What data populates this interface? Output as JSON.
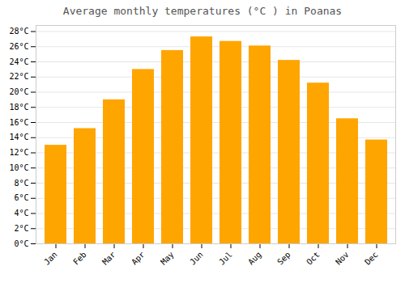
{
  "chart_data": {
    "type": "bar",
    "title": "Average monthly temperatures (°C ) in Poanas",
    "categories": [
      "Jan",
      "Feb",
      "Mar",
      "Apr",
      "May",
      "Jun",
      "Jul",
      "Aug",
      "Sep",
      "Oct",
      "Nov",
      "Dec"
    ],
    "values": [
      13.0,
      15.2,
      19.0,
      23.0,
      25.5,
      27.3,
      26.7,
      26.1,
      24.2,
      21.2,
      16.5,
      13.7
    ],
    "color": "#FFA500",
    "ylim": [
      0,
      28.8
    ],
    "yticks": [
      {
        "value": 0,
        "label": "0°C"
      },
      {
        "value": 2,
        "label": "2°C"
      },
      {
        "value": 4,
        "label": "4°C"
      },
      {
        "value": 6,
        "label": "6°C"
      },
      {
        "value": 8,
        "label": "8°C"
      },
      {
        "value": 10,
        "label": "10°C"
      },
      {
        "value": 12,
        "label": "12°C"
      },
      {
        "value": 14,
        "label": "14°C"
      },
      {
        "value": 16,
        "label": "16°C"
      },
      {
        "value": 18,
        "label": "18°C"
      },
      {
        "value": 20,
        "label": "20°C"
      },
      {
        "value": 22,
        "label": "22°C"
      },
      {
        "value": 24,
        "label": "24°C"
      },
      {
        "value": 26,
        "label": "26°C"
      },
      {
        "value": 28,
        "label": "28°C"
      }
    ],
    "grid": true
  }
}
